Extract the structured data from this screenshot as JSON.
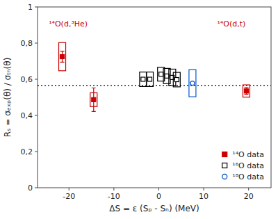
{
  "chart_data": {
    "type": "scatter",
    "x_label": "ΔS = ε (Sₚ - Sₙ) (MeV)",
    "y_label": "Rₛ = σₑₓₚ(θ) / σₜₕ(θ)",
    "xlim": [
      -27,
      25
    ],
    "ylim": [
      0,
      1.0
    ],
    "xticks": [
      -20,
      -10,
      0,
      10,
      20
    ],
    "yticks": [
      0,
      {
        "value": 0.2,
        "label": "0,2"
      },
      {
        "value": 0.4,
        "label": "0,4"
      },
      {
        "value": 0.6,
        "label": "0,6"
      },
      {
        "value": 0.8,
        "label": "0,8"
      },
      1
    ],
    "grid": false,
    "legend": "lower right",
    "reference_lines": [
      {
        "y": 0.565,
        "line_style": "dotted"
      }
    ],
    "annotations": [
      {
        "text": "¹⁴O(d,³He)",
        "x": -24.5,
        "y": 0.935,
        "color": "#cc0000"
      },
      {
        "text": "¹⁴O(d,t)",
        "x": 13.0,
        "y": 0.935,
        "color": "#cc0000"
      }
    ],
    "series": [
      {
        "name": "¹⁴O data",
        "color": "#cc0000",
        "marker": "square",
        "x": [
          -21.5,
          -14.5,
          19.5
        ],
        "values": [
          0.725,
          0.487,
          0.535
        ],
        "box_half": [
          0.078,
          0.038,
          0.034
        ],
        "error_plus": [
          0.03,
          0.065,
          0.018
        ],
        "error_minus": [
          0.03,
          0.065,
          0.018
        ]
      },
      {
        "name": "¹⁶O data",
        "color": "#000000",
        "marker": "open-square",
        "x": [
          -3.5,
          -2.0,
          0.5,
          1.8,
          3.0,
          4.0
        ],
        "values": [
          0.6,
          0.6,
          0.628,
          0.618,
          0.61,
          0.598
        ],
        "box_half": [
          0.04,
          0.04,
          0.038,
          0.042,
          0.046,
          0.04
        ]
      },
      {
        "name": "¹⁸O data",
        "color": "#0055cc",
        "marker": "open-circle",
        "x": [
          7.5
        ],
        "values": [
          0.578
        ],
        "box_half": [
          0.075
        ]
      }
    ]
  }
}
